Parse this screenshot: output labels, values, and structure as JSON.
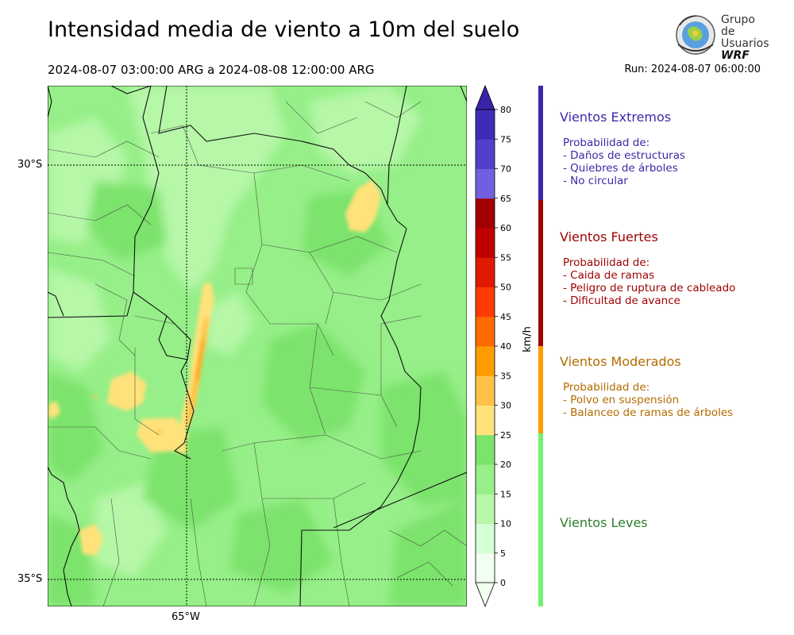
{
  "header": {
    "title": "Intensidad media de viento a 10m del suelo",
    "period": "2024-08-07 03:00:00 ARG  a  2024-08-08 12:00:00 ARG",
    "run": "Run: 2024-08-07 06:00:00"
  },
  "logo": {
    "line1": "Grupo de",
    "line2": "Usuarios",
    "line3": "WRF"
  },
  "map": {
    "lat_labels": [
      "30°S",
      "35°S"
    ],
    "lon_labels": [
      "65°W"
    ]
  },
  "colorbar": {
    "unit": "km/h",
    "ticks": [
      "0",
      "5",
      "10",
      "15",
      "20",
      "25",
      "30",
      "35",
      "40",
      "45",
      "50",
      "55",
      "60",
      "65",
      "70",
      "75",
      "80"
    ],
    "colors": [
      "#f0fff0",
      "#d4ffd4",
      "#b6f7a8",
      "#96ef88",
      "#7ce36c",
      "#ffe27a",
      "#ffc247",
      "#ff9d00",
      "#ff6a00",
      "#ff3b00",
      "#e01a00",
      "#c00000",
      "#a00000",
      "#7060e0",
      "#5040cc",
      "#3e2cb8",
      "#3a22a8"
    ]
  },
  "categories": [
    {
      "title": "Vientos Extremos",
      "color": "#3a2aa8",
      "lines": [
        "Probabilidad de:",
        "- Daños de estructuras",
        "- Quiebres de árboles",
        "- No circular"
      ]
    },
    {
      "title": "Vientos Fuertes",
      "color": "#9e0000",
      "lines": [
        "Probabilidad de:",
        "- Caida de ramas",
        "- Peligro de ruptura de cableado",
        "- Dificultad de avance"
      ]
    },
    {
      "title": "Vientos Moderados",
      "color": "#b36b00",
      "lines": [
        "Probabilidad de:",
        "- Polvo en suspensión",
        "- Balanceo de ramas de árboles"
      ]
    },
    {
      "title": "Vientos Leves",
      "color": "#2e7d2e",
      "lines": []
    }
  ],
  "category_bar_colors": [
    "#3a2aa8",
    "#a00000",
    "#ff9d00",
    "#74f074"
  ]
}
